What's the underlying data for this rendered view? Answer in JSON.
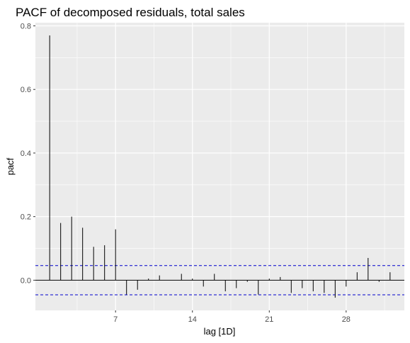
{
  "chart_data": {
    "type": "bar",
    "title": "PACF of decomposed residuals, total sales",
    "xlabel": "lag [1D]",
    "ylabel": "pacf",
    "lags": [
      1,
      2,
      3,
      4,
      5,
      6,
      7,
      8,
      9,
      10,
      11,
      12,
      13,
      14,
      15,
      16,
      17,
      18,
      19,
      20,
      21,
      22,
      23,
      24,
      25,
      26,
      27,
      28,
      29,
      30,
      31,
      32
    ],
    "values": [
      0.77,
      0.18,
      0.2,
      0.165,
      0.105,
      0.11,
      0.16,
      -0.045,
      -0.03,
      0.005,
      0.015,
      0.0,
      0.02,
      0.005,
      -0.02,
      0.02,
      -0.035,
      -0.025,
      -0.005,
      -0.045,
      0.005,
      0.01,
      -0.04,
      -0.025,
      -0.035,
      -0.04,
      -0.055,
      -0.02,
      0.025,
      0.07,
      -0.005,
      0.025
    ],
    "confidence_bound": 0.046,
    "xlim": [
      -0.3,
      33.3
    ],
    "ylim": [
      -0.095,
      0.81
    ],
    "x_ticks": [
      7,
      14,
      21,
      28
    ],
    "x_tick_labels": [
      "7",
      "14",
      "21",
      "28"
    ],
    "y_ticks": [
      0.0,
      0.2,
      0.4,
      0.6,
      0.8
    ],
    "y_tick_labels": [
      "0.0",
      "0.2",
      "0.4",
      "0.6",
      "0.8"
    ],
    "grid": true,
    "colors": {
      "panel_background": "#ebebeb",
      "grid_major": "#ffffff",
      "spike": "#000000",
      "confidence_line": "#0000cc",
      "zero_line": "#000000",
      "tick_mark": "#333333"
    }
  }
}
